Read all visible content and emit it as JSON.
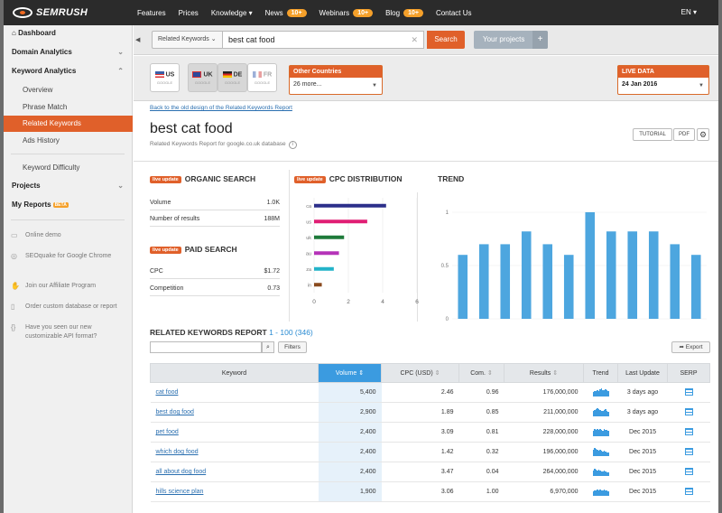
{
  "topbar": {
    "logo": "SEMRUSH",
    "nav": [
      {
        "label": "Features"
      },
      {
        "label": "Prices"
      },
      {
        "label": "Knowledge ▾"
      },
      {
        "label": "News",
        "badge": "10+"
      },
      {
        "label": "Webinars",
        "badge": "10+"
      },
      {
        "label": "Blog",
        "badge": "10+"
      },
      {
        "label": "Contact Us"
      }
    ],
    "lang": "EN ▾"
  },
  "sidebar": {
    "dashboard": "Dashboard",
    "domain_analytics": "Domain Analytics",
    "keyword_analytics": "Keyword Analytics",
    "overview": "Overview",
    "phrase_match": "Phrase Match",
    "related_keywords": "Related Keywords",
    "ads_history": "Ads History",
    "keyword_difficulty": "Keyword Difficulty",
    "projects": "Projects",
    "my_reports": "My Reports",
    "my_reports_badge": "BETA",
    "extras": [
      "Online demo",
      "SEOquake for Google Chrome",
      "Join our Affiliate Program",
      "Order custom database or report",
      "Have you seen our new customizable API format?"
    ]
  },
  "search": {
    "database_select": "Related Keywords",
    "query": "best cat food",
    "button": "Search",
    "your_projects": "Your projects"
  },
  "databases": {
    "flags": [
      {
        "code": "US",
        "sub": "GOOGLE"
      },
      {
        "code": "UK",
        "sub": "GOOGLE"
      },
      {
        "code": "DE",
        "sub": "GOOGLE"
      },
      {
        "code": "FR",
        "sub": "GOOGLE"
      }
    ],
    "other_countries_label": "Other Countries",
    "other_countries_value": "26 more...",
    "live_data_label": "LIVE DATA",
    "live_data_date": "24 Jan 2016"
  },
  "report": {
    "old_design_link": "Back to the old design of the Related Keywords Report",
    "title": "best cat food",
    "subtitle": "Related Keywords Report for google.co.uk database",
    "tutorial": "TUTORIAL",
    "pdf": "PDF"
  },
  "organic": {
    "badge": "live update",
    "title": "ORGANIC SEARCH",
    "rows": [
      {
        "label": "Volume",
        "value": "1.0K"
      },
      {
        "label": "Number of results",
        "value": "188M"
      }
    ]
  },
  "paid": {
    "badge": "live update",
    "title": "PAID SEARCH",
    "rows": [
      {
        "label": "CPC",
        "value": "$1.72"
      },
      {
        "label": "Competition",
        "value": "0.73"
      }
    ]
  },
  "cpc_distribution": {
    "badge": "live update",
    "title": "CPC DISTRIBUTION"
  },
  "trend_section": {
    "title": "TREND"
  },
  "chart_data": [
    {
      "type": "bar",
      "orientation": "horizontal",
      "categories": [
        "ca",
        "us",
        "uk",
        "au",
        "za",
        "in"
      ],
      "values": [
        4.2,
        3.1,
        1.75,
        1.45,
        1.15,
        0.45
      ],
      "colors": [
        "#2c2f8a",
        "#e01e74",
        "#1e7a3a",
        "#b533b8",
        "#23b3c9",
        "#8a4a1e"
      ],
      "xlim": [
        0,
        6
      ],
      "xticks": [
        "0",
        "2",
        "4",
        "6"
      ]
    },
    {
      "type": "bar",
      "values": [
        0.6,
        0.7,
        0.7,
        0.82,
        0.7,
        0.6,
        1.0,
        0.82,
        0.82,
        0.82,
        0.7,
        0.6
      ],
      "ylim": [
        0,
        1
      ],
      "yticks": [
        "0",
        "0.5",
        "1"
      ],
      "color": "#4da6df"
    }
  ],
  "table_section": {
    "title": "RELATED KEYWORDS REPORT",
    "range": "1 - 100 (346)",
    "filters": "Filters",
    "export": "Export",
    "columns": [
      "Keyword",
      "Volume",
      "CPC (USD)",
      "Com.",
      "Results",
      "Trend",
      "Last Update",
      "SERP"
    ],
    "rows": [
      {
        "keyword": "cat food",
        "volume": "5,400",
        "cpc": "2.46",
        "com": "0.96",
        "results": "176,000,000",
        "trend": [
          5,
          6,
          6,
          7,
          6,
          8,
          9,
          7,
          7,
          8,
          7,
          6
        ],
        "last_update": "3 days ago"
      },
      {
        "keyword": "best dog food",
        "volume": "2,900",
        "cpc": "1.89",
        "com": "0.85",
        "results": "211,000,000",
        "trend": [
          6,
          7,
          8,
          9,
          8,
          7,
          6,
          6,
          7,
          8,
          6,
          5
        ],
        "last_update": "3 days ago"
      },
      {
        "keyword": "pet food",
        "volume": "2,400",
        "cpc": "3.09",
        "com": "0.81",
        "results": "228,000,000",
        "trend": [
          6,
          8,
          7,
          8,
          7,
          8,
          7,
          6,
          8,
          7,
          7,
          6
        ],
        "last_update": "Dec 2015"
      },
      {
        "keyword": "which dog food",
        "volume": "2,400",
        "cpc": "1.42",
        "com": "0.32",
        "results": "196,000,000",
        "trend": [
          7,
          9,
          8,
          7,
          6,
          7,
          6,
          5,
          6,
          5,
          4,
          4
        ],
        "last_update": "Dec 2015"
      },
      {
        "keyword": "all about dog food",
        "volume": "2,400",
        "cpc": "3.47",
        "com": "0.04",
        "results": "264,000,000",
        "trend": [
          6,
          8,
          7,
          6,
          7,
          6,
          5,
          5,
          6,
          5,
          4,
          4
        ],
        "last_update": "Dec 2015"
      },
      {
        "keyword": "hills science plan",
        "volume": "1,900",
        "cpc": "3.06",
        "com": "1.00",
        "results": "6,970,000",
        "trend": [
          5,
          6,
          6,
          7,
          6,
          7,
          6,
          6,
          7,
          6,
          6,
          5
        ],
        "last_update": "Dec 2015"
      }
    ]
  }
}
